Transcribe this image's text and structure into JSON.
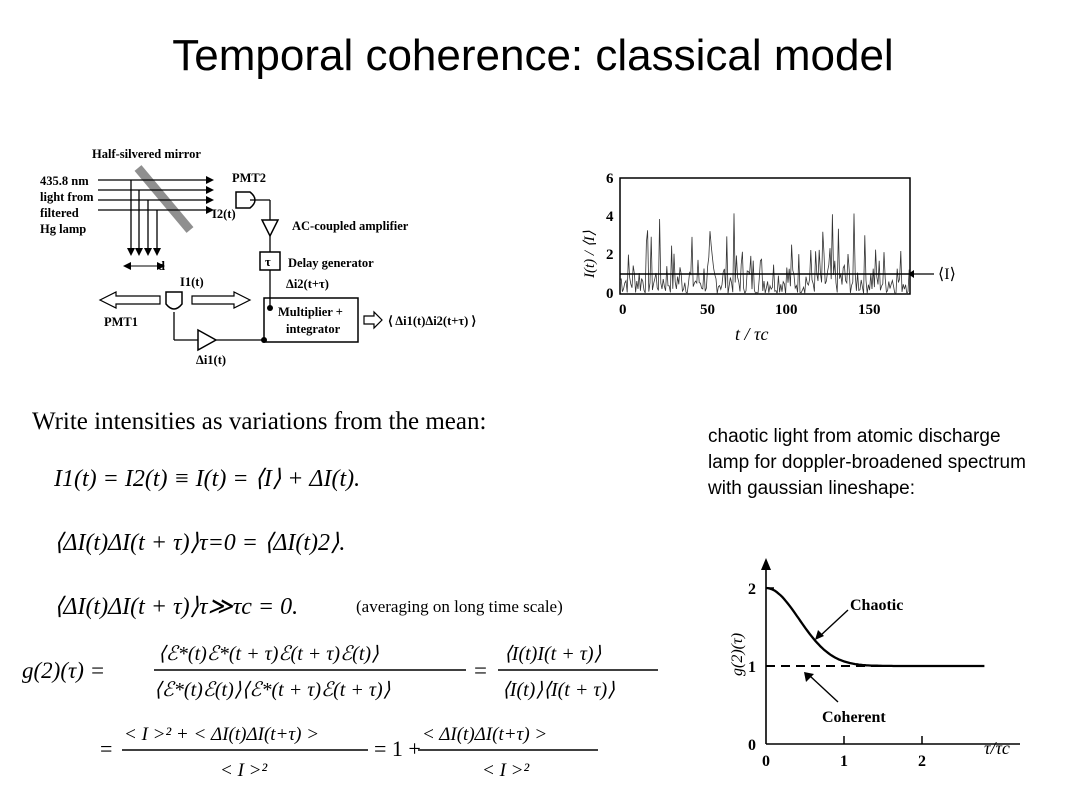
{
  "slide": {
    "title": "Temporal coherence: classical model",
    "write_line": "Write intensities as variations from the mean:",
    "side_text": "chaotic light from atomic discharge lamp for doppler-broadened spectrum with gaussian lineshape:",
    "averaging_note": "(averaging on long time scale)"
  },
  "setup_diagram": {
    "mirror_label": "Half-silvered mirror",
    "source_lines": [
      "435.8 nm",
      "light from",
      "filtered",
      "Hg lamp"
    ],
    "pmt2": "PMT2",
    "i2": "I2(t)",
    "amp": "AC-coupled amplifier",
    "tau": "τ",
    "delay": "Delay generator",
    "di2": "Δi2(t+τ)",
    "d": "d",
    "i1": "I1(t)",
    "pmt1": "PMT1",
    "mult1": "Multiplier +",
    "mult2": "integrator",
    "di1": "Δi1(t)",
    "output": "⟨ Δi1(t)Δi2(t+τ) ⟩"
  },
  "intensity_plot": {
    "ylabel": "I(t) / ⟨I⟩",
    "xlabel": "t / τc",
    "mean_label": "⟨I⟩",
    "xticks": [
      "0",
      "50",
      "100",
      "150"
    ],
    "yticks": [
      "0",
      "2",
      "4",
      "6"
    ]
  },
  "g2_plot": {
    "ylabel": "g(2)(τ)",
    "xlabel": "τ/τc",
    "chaotic": "Chaotic",
    "coherent": "Coherent",
    "xticks": [
      "0",
      "1",
      "2"
    ],
    "yticks": [
      "0",
      "1",
      "2"
    ]
  },
  "equations": {
    "eq1": "I1(t) = I2(t) ≡ I(t) = ⟨I⟩ + ΔI(t).",
    "eq2": "⟨ΔI(t)ΔI(t + τ)⟩τ=0 = ⟨ΔI(t)2⟩.",
    "eq3": "⟨ΔI(t)ΔI(t + τ)⟩τ≫τc = 0.",
    "eq4_lhs": "g(2)(τ) =",
    "eq4_num1": "⟨ℰ*(t)ℰ*(t + τ)ℰ(t + τ)ℰ(t)⟩",
    "eq4_den1": "⟨ℰ*(t)ℰ(t)⟩⟨ℰ*(t + τ)ℰ(t + τ)⟩",
    "eq4_num2": "⟨I(t)I(t + τ)⟩",
    "eq4_den2": "⟨I(t)⟩⟨I(t + τ)⟩",
    "eq5_num1": "< I >² + < ΔI(t)ΔI(t+τ) >",
    "eq5_den1": "< I >²",
    "eq5_mid": "= 1 +",
    "eq5_num2": "< ΔI(t)ΔI(t+τ) >",
    "eq5_den2": "< I >²"
  }
}
